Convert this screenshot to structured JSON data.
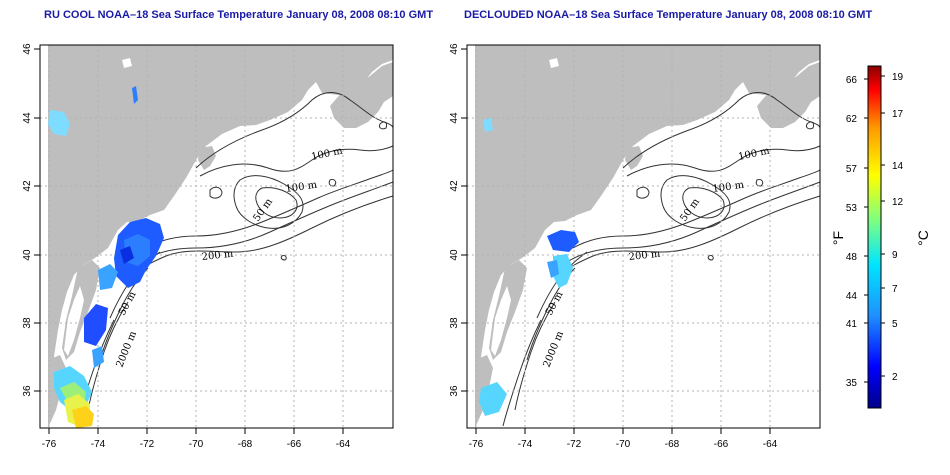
{
  "panels": [
    {
      "title": "RU COOL NOAA–18 Sea Surface Temperature January 08, 2008 08:10 GMT",
      "x_ticks": [
        "-76",
        "-74",
        "-72",
        "-70",
        "-68",
        "-66",
        "-64"
      ],
      "y_ticks": [
        "36",
        "38",
        "40",
        "42",
        "44",
        "46"
      ],
      "contour_labels": [
        "100 m",
        "100 m",
        "50 m",
        "200 m",
        "50 m",
        "2000 m"
      ]
    },
    {
      "title": "DECLOUDED NOAA–18 Sea Surface Temperature January 08, 2008 08:10 GMT",
      "x_ticks": [
        "-76",
        "-74",
        "-72",
        "-70",
        "-68",
        "-66",
        "-64"
      ],
      "y_ticks": [
        "36",
        "38",
        "40",
        "42",
        "44",
        "46"
      ],
      "contour_labels": [
        "100 m",
        "100 m",
        "50 m",
        "200 m",
        "50 m",
        "2000 m"
      ]
    }
  ],
  "colorbar": {
    "fahrenheit_ticks": [
      "66",
      "62",
      "57",
      "53",
      "48",
      "44",
      "41",
      "35"
    ],
    "celsius_ticks": [
      "19",
      "17",
      "14",
      "12",
      "9",
      "7",
      "5",
      "2"
    ],
    "fahrenheit_label": "°F",
    "celsius_label": "°C",
    "colors": [
      "#00008b",
      "#0000ff",
      "#1e90ff",
      "#00e5ff",
      "#7fff7f",
      "#ffff00",
      "#ff9900",
      "#ff0000",
      "#8b0000"
    ]
  },
  "colors": {
    "land": "#bebebe",
    "title": "#1a1aa6",
    "grid": "#b3b3b3"
  }
}
